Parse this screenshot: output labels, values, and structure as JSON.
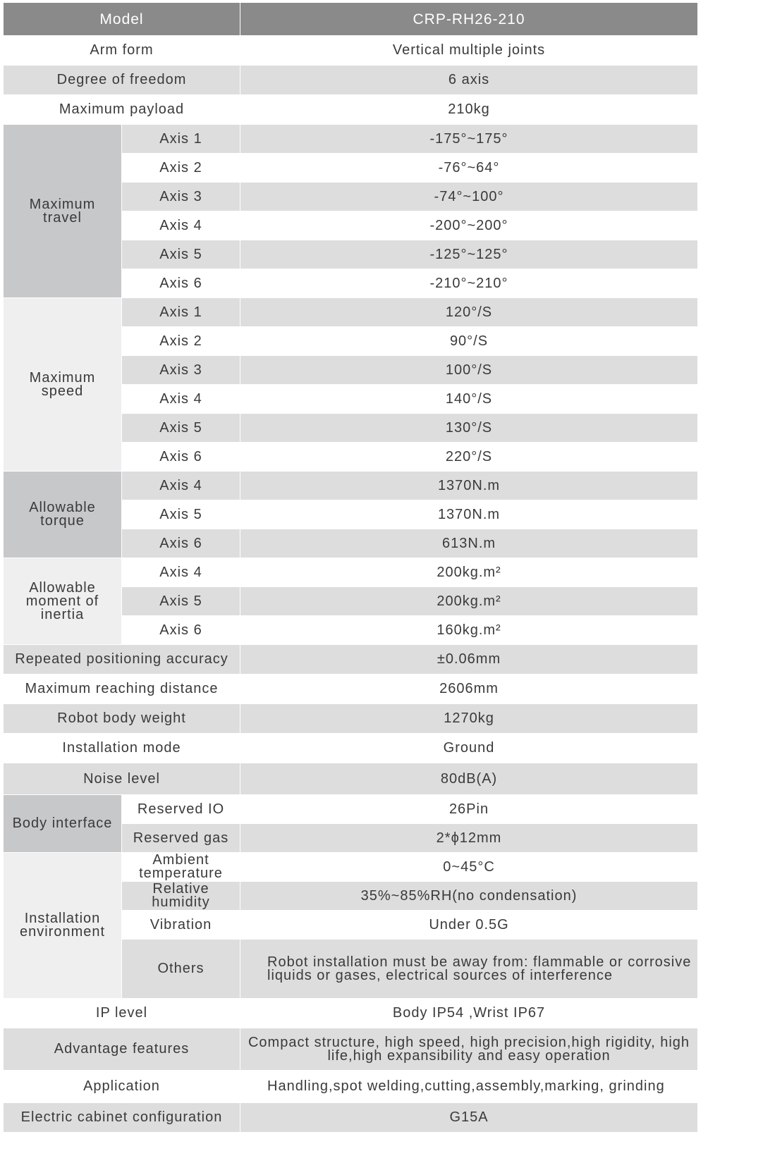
{
  "header": {
    "label": "Model",
    "value": "CRP-RH26-210"
  },
  "sections": [
    {
      "label": "Arm form",
      "value": "Vertical multiple joints"
    },
    {
      "label": "Degree of freedom",
      "value": "6 axis"
    },
    {
      "label": "Maximum payload",
      "value": "210kg"
    },
    {
      "group": "Maximum travel",
      "tone": "dark",
      "items": [
        {
          "label": "Axis 1",
          "value": "-175°~175°"
        },
        {
          "label": "Axis 2",
          "value": "-76°~64°"
        },
        {
          "label": "Axis 3",
          "value": "-74°~100°"
        },
        {
          "label": "Axis 4",
          "value": "-200°~200°"
        },
        {
          "label": "Axis 5",
          "value": "-125°~125°"
        },
        {
          "label": "Axis 6",
          "value": "-210°~210°"
        }
      ]
    },
    {
      "group": "Maximum speed",
      "tone": "light",
      "items": [
        {
          "label": "Axis 1",
          "value": "120°/S"
        },
        {
          "label": "Axis 2",
          "value": "90°/S"
        },
        {
          "label": "Axis 3",
          "value": "100°/S"
        },
        {
          "label": "Axis 4",
          "value": "140°/S"
        },
        {
          "label": "Axis 5",
          "value": "130°/S"
        },
        {
          "label": "Axis 6",
          "value": "220°/S"
        }
      ]
    },
    {
      "group": "Allowable torque",
      "tone": "dark",
      "items": [
        {
          "label": "Axis 4",
          "value": "1370N.m"
        },
        {
          "label": "Axis 5",
          "value": "1370N.m"
        },
        {
          "label": "Axis 6",
          "value": "613N.m"
        }
      ]
    },
    {
      "group": "Allowable moment of inertia",
      "tone": "light",
      "items": [
        {
          "label": "Axis 4",
          "value": "200kg.m²"
        },
        {
          "label": "Axis 5",
          "value": "200kg.m²"
        },
        {
          "label": "Axis 6",
          "value": "160kg.m²"
        }
      ]
    },
    {
      "label": "Repeated positioning accuracy",
      "value": "±0.06mm"
    },
    {
      "label": "Maximum reaching distance",
      "value": "2606mm"
    },
    {
      "label": "Robot body weight",
      "value": "1270kg"
    },
    {
      "label": "Installation mode",
      "value": "Ground"
    },
    {
      "label": "Noise level",
      "value": "80dB(A)"
    },
    {
      "group": "Body interface",
      "tone": "dark",
      "items": [
        {
          "label": "Reserved IO",
          "value": "26Pin"
        },
        {
          "label": "Reserved gas",
          "value": "2*ϕ12mm"
        }
      ]
    },
    {
      "group": "Installation environment",
      "tone": "light",
      "items": [
        {
          "label": "Ambient temperature",
          "value": "0~45°C"
        },
        {
          "label": "Relative humidity",
          "value": "35%~85%RH(no condensation)"
        },
        {
          "label": "Vibration",
          "value": "Under 0.5G"
        },
        {
          "label": "Others",
          "value": "Robot installation must be away from: flammable or corrosive liquids or gases, electrical sources of interference",
          "align": "left"
        }
      ]
    },
    {
      "label": "IP level",
      "value": "Body IP54 ,Wrist IP67"
    },
    {
      "label": "Advantage features",
      "value": "Compact structure, high speed, high precision,high rigidity, high life,high expansibility and easy operation"
    },
    {
      "label": "Application",
      "value": "Handling,spot welding,cutting,assembly,marking, grinding",
      "align": "left"
    },
    {
      "label": "Electric cabinet configuration",
      "value": "G15A"
    }
  ],
  "colors": {
    "header": "#8a8a8a",
    "stripe": "#dcdddc",
    "group_dark": "#c7c8c9",
    "group_light": "#efefef"
  }
}
